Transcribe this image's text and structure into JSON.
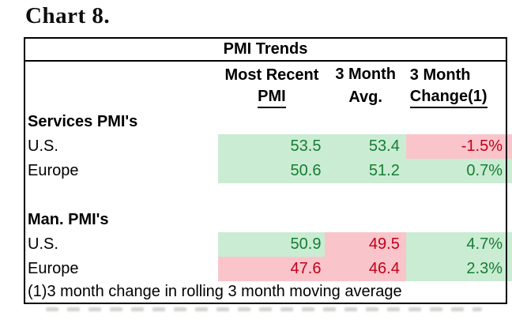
{
  "title": "Chart 8.",
  "table": {
    "header": "PMI Trends",
    "columns": [
      {
        "line1": "Most Recent",
        "line2": "PMI",
        "underlined": true
      },
      {
        "line1": "3 Month",
        "line2": "Avg.",
        "underlined": false
      },
      {
        "line1": "3 Month",
        "line2": "Change(1)",
        "underlined": true
      }
    ],
    "sections": [
      {
        "label": "Services PMI's",
        "rows": [
          {
            "label": "U.S.",
            "cells": [
              {
                "value": "53.5",
                "state": "good"
              },
              {
                "value": "53.4",
                "state": "good"
              },
              {
                "value": "-1.5%",
                "state": "bad"
              }
            ]
          },
          {
            "label": "Europe",
            "cells": [
              {
                "value": "50.6",
                "state": "good"
              },
              {
                "value": "51.2",
                "state": "good"
              },
              {
                "value": "0.7%",
                "state": "good"
              }
            ]
          }
        ]
      },
      {
        "label": "Man. PMI's",
        "rows": [
          {
            "label": "U.S.",
            "cells": [
              {
                "value": "50.9",
                "state": "good"
              },
              {
                "value": "49.5",
                "state": "bad"
              },
              {
                "value": "4.7%",
                "state": "good"
              }
            ]
          },
          {
            "label": "Europe",
            "cells": [
              {
                "value": "47.6",
                "state": "bad"
              },
              {
                "value": "46.4",
                "state": "bad"
              },
              {
                "value": "2.3%",
                "state": "good"
              }
            ]
          }
        ]
      }
    ],
    "footnote": "(1)3 month change in rolling 3 month moving average"
  },
  "colors": {
    "good_bg": "#C9ECD2",
    "good_text": "#177D33",
    "bad_bg": "#F9C5CB",
    "bad_text": "#C00018",
    "border": "#000000"
  },
  "chart_data": {
    "type": "table",
    "title": "PMI Trends",
    "columns": [
      "",
      "Most Recent PMI",
      "3 Month Avg.",
      "3 Month Change(1)"
    ],
    "rows": [
      [
        "Services PMI's",
        null,
        null,
        null
      ],
      [
        "U.S.",
        53.5,
        53.4,
        "-1.5%"
      ],
      [
        "Europe",
        50.6,
        51.2,
        "0.7%"
      ],
      [
        "Man. PMI's",
        null,
        null,
        null
      ],
      [
        "U.S.",
        50.9,
        49.5,
        "4.7%"
      ],
      [
        "Europe",
        47.6,
        46.4,
        "2.3%"
      ]
    ],
    "highlights": [
      [
        "",
        "",
        "",
        ""
      ],
      [
        "",
        "good",
        "good",
        "bad"
      ],
      [
        "",
        "good",
        "good",
        "good"
      ],
      [
        "",
        "",
        "",
        ""
      ],
      [
        "",
        "good",
        "bad",
        "good"
      ],
      [
        "",
        "bad",
        "bad",
        "good"
      ]
    ],
    "footnote": "(1)3 month change in rolling 3 month moving average"
  }
}
